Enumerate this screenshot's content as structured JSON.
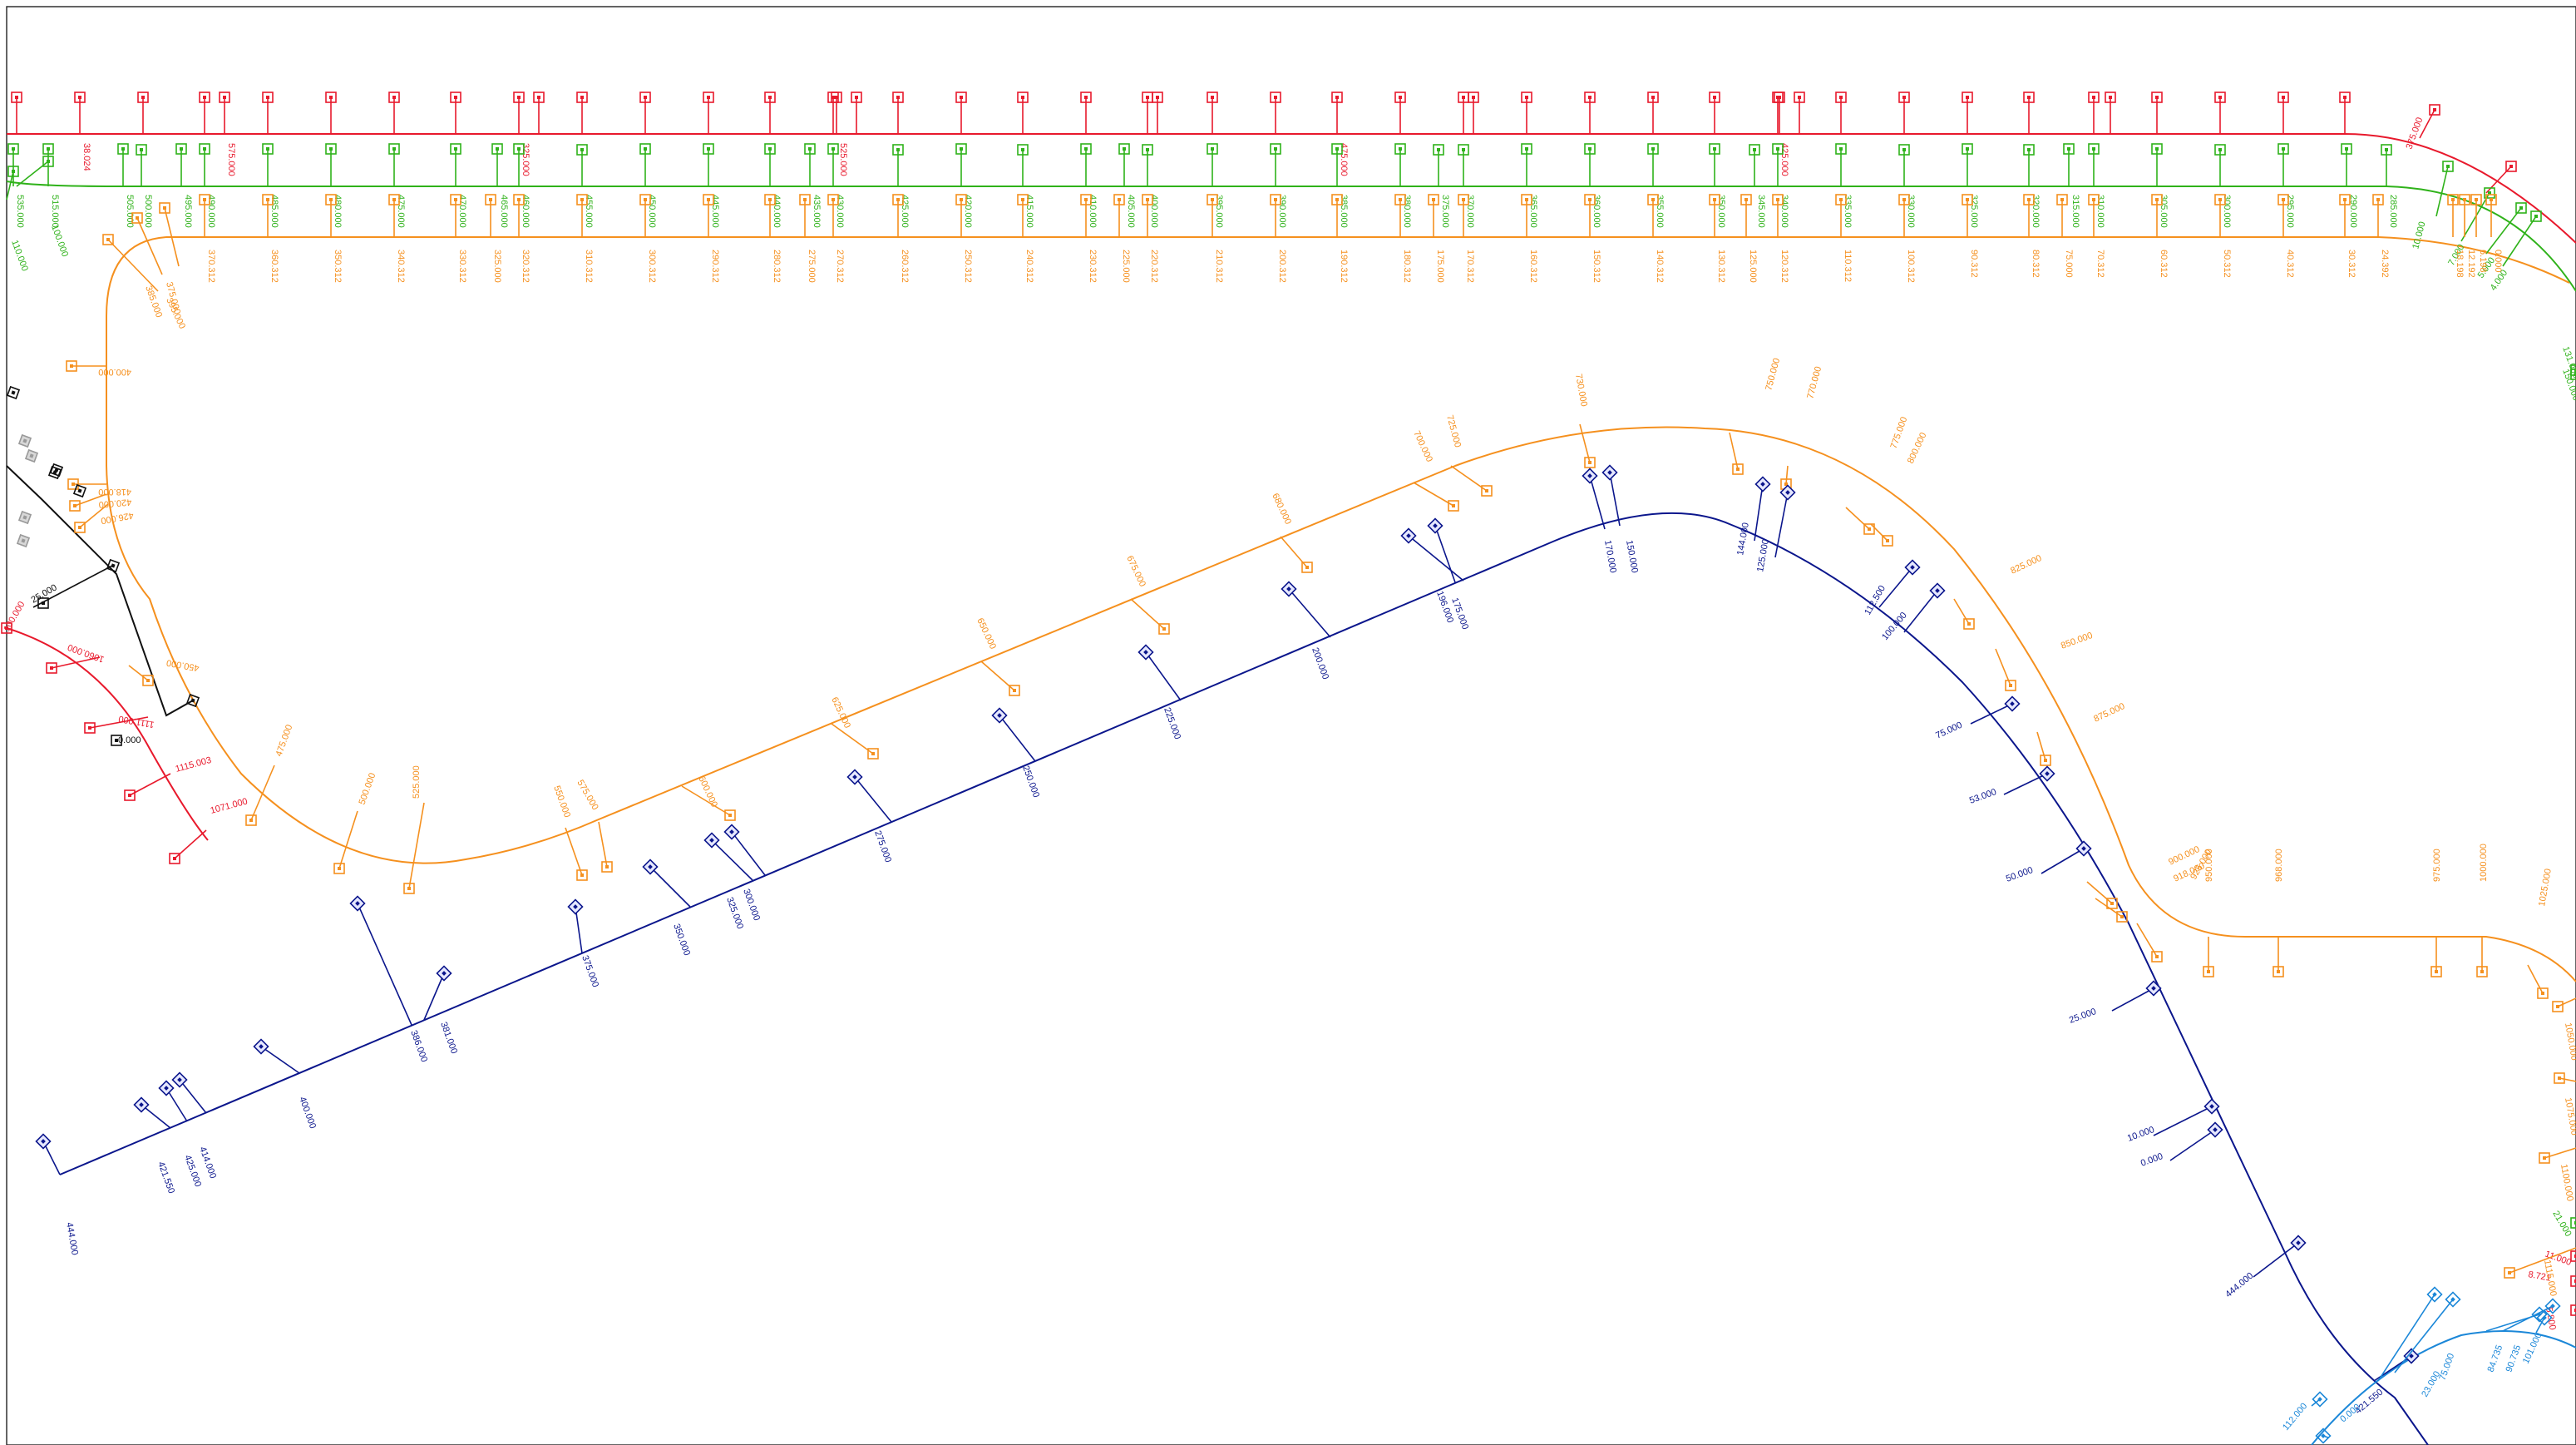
{
  "colors": {
    "background": "#ffffff",
    "frame": "#000000",
    "red": "#e8192c",
    "green": "#2fb21a",
    "orange": "#f5901e",
    "navy": "#0b168c",
    "blue": "#1b87d8",
    "black": "#111111",
    "grey": "#9a9a9a"
  },
  "red_line": {
    "labels": [
      "38.024",
      "575.000",
      "525.000",
      "475.000",
      "425.000",
      "375.000",
      "325.000",
      "100.000",
      "1060.000",
      "1111.000",
      "1115.003",
      "1071.000",
      "11.000",
      "8.721",
      "5.800"
    ]
  },
  "green_line": {
    "labels": [
      "535.000",
      "515.000",
      "505.000",
      "500.000",
      "495.000",
      "490.000",
      "485.000",
      "480.000",
      "475.000",
      "470.000",
      "465.000",
      "460.000",
      "455.000",
      "450.000",
      "445.000",
      "440.000",
      "435.000",
      "430.000",
      "425.000",
      "420.000",
      "415.000",
      "410.000",
      "405.000",
      "400.000",
      "395.000",
      "390.000",
      "385.000",
      "380.000",
      "375.000",
      "370.000",
      "365.000",
      "360.000",
      "355.000",
      "350.000",
      "345.000",
      "340.000",
      "335.000",
      "330.000",
      "325.000",
      "320.000",
      "315.000",
      "310.000",
      "305.000",
      "300.000",
      "295.000",
      "290.000",
      "285.000",
      "280.000",
      "275.000",
      "270.000",
      "265.000",
      "260.000",
      "255.000",
      "250.000",
      "245.000",
      "240.000",
      "235.000",
      "230.000",
      "225.000",
      "220.000",
      "215.000",
      "210.000",
      "205.000",
      "200.000",
      "195.000",
      "190.000",
      "185.000",
      "180.000",
      "175.000",
      "170.000",
      "165.000",
      "160.000",
      "155.000",
      "150.000",
      "145.000",
      "140.000",
      "135.000",
      "130.000",
      "125.000",
      "120.000",
      "115.000",
      "110.000",
      "105.000",
      "100.000",
      "95.000",
      "90.000",
      "85.000",
      "80.000",
      "75.000",
      "70.000",
      "65.000",
      "60.000",
      "55.000",
      "50.000",
      "45.000",
      "40.000",
      "35.000",
      "30.000",
      "25.000",
      "20.000",
      "15.000",
      "10.000",
      "100.000",
      "110.000",
      "10.000",
      "7.000",
      "5.000",
      "4.000",
      "131.000",
      "150.000",
      "21.000",
      "7.000",
      "5.000",
      "14.000",
      "10.000"
    ]
  },
  "orange_top": {
    "labels": [
      "370.312",
      "360.312",
      "350.312",
      "340.312",
      "330.312",
      "325.000",
      "320.312",
      "310.312",
      "300.312",
      "290.312",
      "280.312",
      "275.000",
      "270.312",
      "260.312",
      "250.312",
      "240.312",
      "230.312",
      "225.000",
      "220.312",
      "210.312",
      "200.312",
      "190.312",
      "180.312",
      "175.000",
      "170.312",
      "160.312",
      "150.312",
      "140.312",
      "130.312",
      "125.000",
      "120.312",
      "110.312",
      "100.312",
      "90.312",
      "80.312",
      "75.000",
      "70.312",
      "60.312",
      "50.312",
      "40.312",
      "30.312",
      "24.392",
      "18.198",
      "12.192",
      "6.198",
      "0.000",
      "375.000",
      "385.000",
      "395.000"
    ]
  },
  "orange_left": {
    "labels": [
      "400.000",
      "418.000",
      "420.000",
      "426.000",
      "450.000",
      "475.000",
      "500.000",
      "525.000"
    ]
  },
  "orange_middle": {
    "labels": [
      "550.000",
      "575.000",
      "600.000",
      "625.000",
      "650.000",
      "675.000",
      "680.000",
      "700.000",
      "725.000",
      "730.000",
      "750.000",
      "770.000",
      "775.000",
      "800.000",
      "825.000",
      "850.000",
      "875.000",
      "900.000",
      "918.000",
      "925.000",
      "950.000",
      "968.000",
      "975.000",
      "1000.000",
      "1025.000",
      "1050.000",
      "1075.000",
      "1100.000",
      "1115.000"
    ]
  },
  "navy_line": {
    "labels": [
      "444.000",
      "421.550",
      "425.000",
      "414.000",
      "400.000",
      "386.000",
      "381.000",
      "375.000",
      "350.000",
      "325.000",
      "300.000",
      "275.000",
      "250.000",
      "225.000",
      "200.000",
      "196.000",
      "175.000",
      "170.000",
      "150.000",
      "144.000",
      "125.000",
      "112.500",
      "100.000",
      "75.000",
      "53.000",
      "50.000",
      "25.000",
      "10.000",
      "0.000"
    ]
  },
  "blue_line": {
    "labels": [
      "23.000",
      "75.000",
      "84.735",
      "90.735",
      "101.000",
      "112.000",
      "0.000"
    ]
  },
  "black_line": {
    "labels": [
      "25.000",
      "0.000"
    ]
  }
}
